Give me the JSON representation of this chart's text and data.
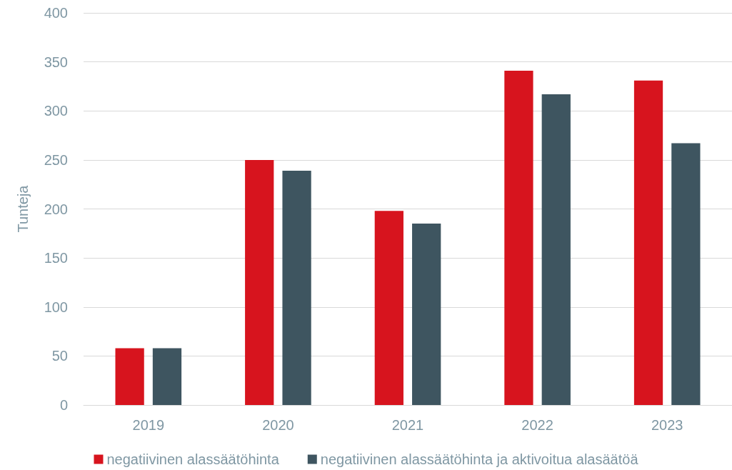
{
  "chart_data": {
    "type": "bar",
    "ylabel": "Tunteja",
    "categories": [
      "2019",
      "2020",
      "2021",
      "2022",
      "2023"
    ],
    "series": [
      {
        "name": "negatiivinen alassäätöhinta",
        "color": "#d7141e",
        "values": [
          58,
          250,
          198,
          341,
          331
        ]
      },
      {
        "name": "negatiivinen alassäätöhinta ja aktivoitua alasäätöä",
        "color": "#3e5560",
        "values": [
          58,
          239,
          185,
          317,
          267
        ]
      }
    ],
    "ylim": [
      0,
      400
    ],
    "yticks": [
      0,
      50,
      100,
      150,
      200,
      250,
      300,
      350,
      400
    ],
    "grid": "y",
    "legend": "bottom"
  }
}
